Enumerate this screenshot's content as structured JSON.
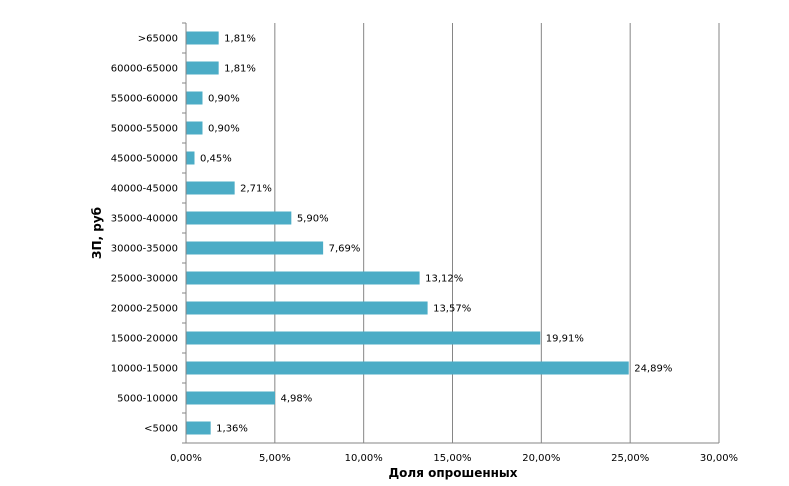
{
  "chart_data": {
    "type": "bar",
    "orientation": "horizontal",
    "categories": [
      ">65000",
      "60000-65000",
      "55000-60000",
      "50000-55000",
      "45000-50000",
      "40000-45000",
      "35000-40000",
      "30000-35000",
      "25000-30000",
      "20000-25000",
      "15000-20000",
      "10000-15000",
      "5000-10000",
      "<5000"
    ],
    "values": [
      1.81,
      1.81,
      0.9,
      0.9,
      0.45,
      2.71,
      5.9,
      7.69,
      13.12,
      13.57,
      19.91,
      24.89,
      4.98,
      1.36
    ],
    "data_labels": [
      "1,81%",
      "1,81%",
      "0,90%",
      "0,90%",
      "0,45%",
      "2,71%",
      "5,90%",
      "7,69%",
      "13,12%",
      "13,57%",
      "19,91%",
      "24,89%",
      "4,98%",
      "1,36%"
    ],
    "xlim": [
      0,
      30
    ],
    "x_ticks": [
      0,
      5,
      10,
      15,
      20,
      25,
      30
    ],
    "x_tick_labels": [
      "0,00%",
      "5,00%",
      "10,00%",
      "15,00%",
      "20,00%",
      "25,00%",
      "30,00%"
    ],
    "xlabel": "Доля опрошенных",
    "ylabel": "ЗП, руб",
    "title": "",
    "grid": true,
    "legend": false,
    "bar_color": "#4BACC6",
    "grid_color": "#868686"
  }
}
